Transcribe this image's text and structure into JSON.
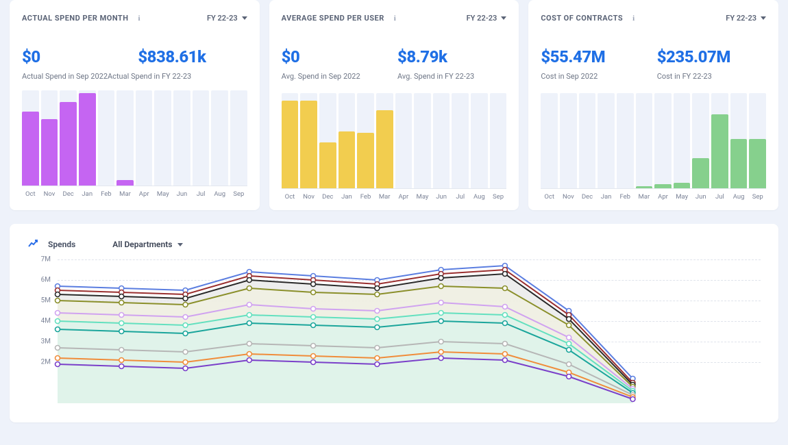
{
  "page_bg": "#eef2fa",
  "cards": [
    {
      "id": "actual_spend",
      "title": "ACTUAL SPEND PER MONTH",
      "fy_label": "FY 22-23",
      "stat1_value": "$0",
      "stat1_label": "Actual Spend in Sep 2022",
      "stat2_value": "$838.61k",
      "stat2_label": "Actual Spend in FY 22-23",
      "labels_merged": true,
      "chart": {
        "type": "bar",
        "categories": [
          "Oct",
          "Nov",
          "Dec",
          "Jan",
          "Feb",
          "Mar",
          "Apr",
          "May",
          "Jun",
          "Jul",
          "Aug",
          "Sep"
        ],
        "values": [
          78,
          70,
          88,
          97,
          0,
          6,
          0,
          0,
          0,
          0,
          0,
          0
        ],
        "bg_height": 100,
        "bar_color": "#c565f2",
        "bar_bg_color": "#eef2fa",
        "ylim": [
          0,
          100
        ]
      }
    },
    {
      "id": "avg_spend",
      "title": "AVERAGE SPEND PER USER",
      "fy_label": "FY 22-23",
      "stat1_value": "$0",
      "stat1_label": "Avg. Spend in Sep 2022",
      "stat2_value": "$8.79k",
      "stat2_label": "Avg. Spend in FY 22-23",
      "labels_merged": false,
      "chart": {
        "type": "bar",
        "categories": [
          "Oct",
          "Nov",
          "Dec",
          "Jan",
          "Feb",
          "Mar",
          "Apr",
          "May",
          "Jun",
          "Jul",
          "Aug",
          "Sep"
        ],
        "values": [
          92,
          92,
          48,
          60,
          58,
          82,
          0,
          0,
          0,
          0,
          0,
          0
        ],
        "bg_height": 100,
        "bar_color": "#f2cd4f",
        "bar_bg_color": "#eef2fa",
        "ylim": [
          0,
          100
        ]
      }
    },
    {
      "id": "cost_contracts",
      "title": "COST OF CONTRACTS",
      "fy_label": "FY 22-23",
      "stat1_value": "$55.47M",
      "stat1_label": "Cost in Sep 2022",
      "stat2_value": "$235.07M",
      "stat2_label": "Cost in FY 22-23",
      "labels_merged": false,
      "chart": {
        "type": "bar",
        "categories": [
          "Oct",
          "Nov",
          "Dec",
          "Jan",
          "Feb",
          "Mar",
          "Apr",
          "May",
          "Jun",
          "Jul",
          "Aug",
          "Sep"
        ],
        "values": [
          0,
          0,
          0,
          0,
          0,
          2,
          4,
          6,
          32,
          78,
          52,
          52
        ],
        "bg_height": 100,
        "bar_color": "#86d08d",
        "bar_bg_color": "#eef2fa",
        "ylim": [
          0,
          100
        ]
      }
    }
  ],
  "spends_panel": {
    "title": "Spends",
    "department_label": "All Departments",
    "chart": {
      "type": "line",
      "ylim": [
        0,
        7
      ],
      "y_ticks": [
        2,
        3,
        4,
        5,
        6,
        7
      ],
      "y_tick_suffix": "M",
      "x_count": 12,
      "grid_color": "#dfe3eb",
      "marker_radius": 3.5,
      "line_width": 2,
      "series": [
        {
          "color": "#5a7de0",
          "values": [
            5.7,
            5.6,
            5.5,
            6.4,
            6.2,
            6.0,
            6.5,
            6.7,
            4.5,
            1.2,
            null,
            null
          ],
          "fill": false
        },
        {
          "color": "#9a2f2f",
          "values": [
            5.5,
            5.4,
            5.3,
            6.2,
            6.0,
            5.8,
            6.3,
            6.5,
            4.3,
            1.0,
            null,
            null
          ],
          "fill": false
        },
        {
          "color": "#2a2a2a",
          "values": [
            5.3,
            5.2,
            5.1,
            6.0,
            5.8,
            5.6,
            6.1,
            6.3,
            4.1,
            0.9,
            null,
            null
          ],
          "fill": "#e5e5e5"
        },
        {
          "color": "#8a8f2a",
          "values": [
            5.0,
            4.9,
            4.8,
            5.6,
            5.4,
            5.3,
            5.7,
            5.6,
            3.8,
            0.8,
            null,
            null
          ],
          "fill": "#f1f1df"
        },
        {
          "color": "#d0a2f0",
          "values": [
            4.4,
            4.3,
            4.2,
            4.8,
            4.6,
            4.5,
            4.9,
            4.7,
            3.2,
            0.7,
            null,
            null
          ],
          "fill": false
        },
        {
          "color": "#63e0bf",
          "values": [
            4.0,
            3.9,
            3.8,
            4.3,
            4.2,
            4.1,
            4.4,
            4.3,
            2.9,
            0.6,
            null,
            null
          ],
          "fill": "#d8f4ec"
        },
        {
          "color": "#1aa59b",
          "values": [
            3.6,
            3.5,
            3.4,
            3.9,
            3.8,
            3.7,
            4.0,
            3.9,
            2.6,
            0.5,
            null,
            null
          ],
          "fill": false
        },
        {
          "color": "#b6b6b6",
          "values": [
            2.7,
            2.6,
            2.5,
            2.9,
            2.8,
            2.7,
            3.0,
            2.9,
            1.9,
            0.4,
            null,
            null
          ],
          "fill": false
        },
        {
          "color": "#f08c3a",
          "values": [
            2.2,
            2.1,
            2.0,
            2.4,
            2.3,
            2.2,
            2.5,
            2.4,
            1.5,
            0.3,
            null,
            null
          ],
          "fill": false
        },
        {
          "color": "#7a3fc9",
          "values": [
            1.9,
            1.8,
            1.7,
            2.1,
            2.0,
            1.9,
            2.2,
            2.1,
            1.3,
            0.2,
            null,
            null
          ],
          "fill": false
        }
      ]
    }
  }
}
